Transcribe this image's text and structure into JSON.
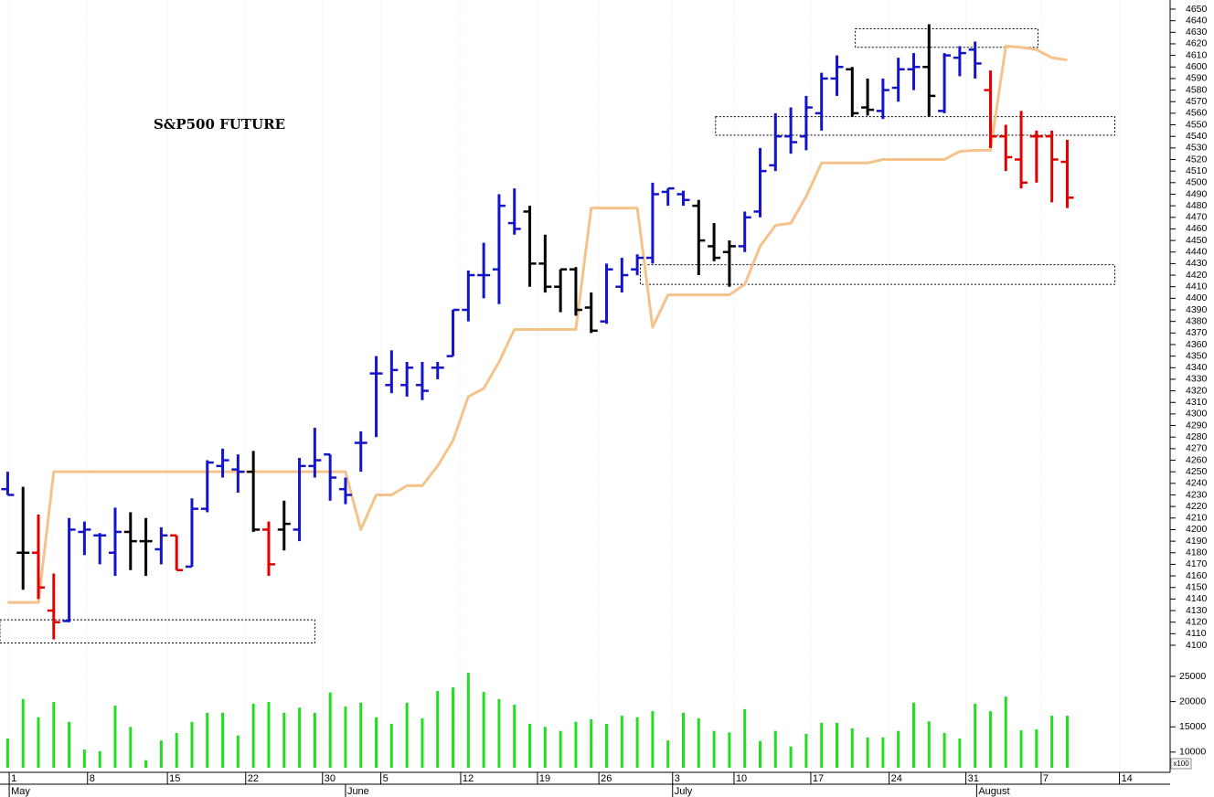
{
  "chart_data": {
    "type": "ohlc",
    "title": "S&P500 FUTURE",
    "x": [
      0,
      1,
      2,
      3,
      4,
      5,
      6,
      7,
      8,
      9,
      10,
      11,
      12,
      13,
      14,
      15,
      16,
      17,
      18,
      19,
      20,
      21,
      22,
      23,
      24,
      25,
      26,
      27,
      28,
      29,
      30,
      31,
      32,
      33,
      34,
      35,
      36,
      37,
      38,
      39,
      40,
      41,
      42,
      43,
      44,
      45,
      46,
      47,
      48,
      49,
      50,
      51,
      52,
      53,
      54,
      55,
      56,
      57,
      58,
      59,
      60,
      61,
      62,
      63,
      64,
      65,
      66,
      67,
      68,
      69
    ],
    "open": [
      4235,
      4180,
      4180,
      4130,
      4121,
      4198,
      4195,
      4180,
      4198,
      4190,
      4183,
      4195,
      4168,
      4218,
      4255,
      4252,
      4250,
      4200,
      4200,
      4200,
      4255,
      4265,
      4235,
      4275,
      4335,
      4325,
      4325,
      4325,
      4340,
      4350,
      4390,
      4420,
      4425,
      4465,
      4475,
      4430,
      4410,
      4425,
      4392,
      4380,
      4410,
      4425,
      4435,
      4492,
      4490,
      4480,
      4445,
      4440,
      4445,
      4475,
      4515,
      4540,
      4540,
      4560,
      4590,
      4598,
      4565,
      4562,
      4582,
      4598,
      4600,
      4562,
      4608,
      4615,
      4580,
      4540,
      4520,
      4540,
      4540,
      4518
    ],
    "high": [
      4250,
      4237,
      4213,
      4162,
      4210,
      4207,
      4197,
      4219,
      4215,
      4210,
      4202,
      4195,
      4227,
      4260,
      4270,
      4265,
      4268,
      4207,
      4225,
      4262,
      4288,
      4265,
      4245,
      4285,
      4350,
      4355,
      4345,
      4345,
      4345,
      4390,
      4424,
      4448,
      4490,
      4495,
      4480,
      4455,
      4425,
      4427,
      4405,
      4430,
      4435,
      4438,
      4500,
      4495,
      4493,
      4485,
      4465,
      4450,
      4475,
      4530,
      4560,
      4565,
      4575,
      4595,
      4610,
      4600,
      4590,
      4590,
      4608,
      4612,
      4637,
      4612,
      4618,
      4622,
      4597,
      4550,
      4562,
      4545,
      4545,
      4537
    ],
    "low": [
      4230,
      4148,
      4140,
      4105,
      4120,
      4178,
      4170,
      4160,
      4165,
      4160,
      4170,
      4165,
      4168,
      4215,
      4245,
      4232,
      4198,
      4160,
      4182,
      4190,
      4245,
      4225,
      4222,
      4250,
      4280,
      4318,
      4315,
      4312,
      4330,
      4350,
      4380,
      4400,
      4395,
      4455,
      4410,
      4405,
      4388,
      4385,
      4370,
      4378,
      4405,
      4420,
      4430,
      4480,
      4480,
      4420,
      4432,
      4410,
      4440,
      4470,
      4510,
      4525,
      4528,
      4545,
      4575,
      4557,
      4558,
      4555,
      4570,
      4580,
      4557,
      4560,
      4592,
      4590,
      4530,
      4510,
      4495,
      4500,
      4483,
      4478
    ],
    "close": [
      4230,
      4180,
      4150,
      4120,
      4200,
      4200,
      4195,
      4198,
      4190,
      4190,
      4195,
      4165,
      4218,
      4258,
      4260,
      4250,
      4200,
      4170,
      4205,
      4255,
      4260,
      4245,
      4230,
      4275,
      4335,
      4338,
      4340,
      4320,
      4340,
      4390,
      4420,
      4420,
      4480,
      4460,
      4430,
      4410,
      4425,
      4390,
      4372,
      4425,
      4420,
      4435,
      4490,
      4495,
      4485,
      4450,
      4435,
      4445,
      4470,
      4510,
      4540,
      4535,
      4565,
      4590,
      4600,
      4560,
      4563,
      4580,
      4598,
      4600,
      4575,
      4610,
      4612,
      4603,
      4540,
      4522,
      4500,
      4540,
      4520,
      4487
    ],
    "bar_colors": [
      "#1414c8",
      "#000000",
      "#e00000",
      "#e00000",
      "#1414c8",
      "#1414c8",
      "#1414c8",
      "#1414c8",
      "#000000",
      "#000000",
      "#1414c8",
      "#e00000",
      "#1414c8",
      "#1414c8",
      "#1414c8",
      "#1414c8",
      "#000000",
      "#e00000",
      "#000000",
      "#1414c8",
      "#1414c8",
      "#1414c8",
      "#1414c8",
      "#1414c8",
      "#1414c8",
      "#1414c8",
      "#1414c8",
      "#1414c8",
      "#1414c8",
      "#1414c8",
      "#1414c8",
      "#1414c8",
      "#1414c8",
      "#1414c8",
      "#000000",
      "#000000",
      "#000000",
      "#000000",
      "#000000",
      "#1414c8",
      "#1414c8",
      "#1414c8",
      "#1414c8",
      "#1414c8",
      "#1414c8",
      "#000000",
      "#000000",
      "#000000",
      "#1414c8",
      "#1414c8",
      "#1414c8",
      "#1414c8",
      "#1414c8",
      "#1414c8",
      "#1414c8",
      "#000000",
      "#000000",
      "#1414c8",
      "#1414c8",
      "#1414c8",
      "#000000",
      "#1414c8",
      "#1414c8",
      "#1414c8",
      "#e00000",
      "#e00000",
      "#e00000",
      "#e00000",
      "#e00000",
      "#e00000"
    ],
    "line_values": [
      4137,
      4137,
      4137,
      4250,
      4250,
      4250,
      4250,
      4250,
      4250,
      4250,
      4250,
      4250,
      4250,
      4250,
      4250,
      4250,
      4250,
      4250,
      4250,
      4250,
      4250,
      4250,
      4250,
      4200,
      4230,
      4230,
      4238,
      4238,
      4255,
      4277,
      4315,
      4322,
      4345,
      4373,
      4373,
      4373,
      4373,
      4373,
      4478,
      4478,
      4478,
      4478,
      4375,
      4403,
      4403,
      4403,
      4403,
      4403,
      4412,
      4445,
      4463,
      4465,
      4488,
      4517,
      4517,
      4517,
      4517,
      4520,
      4520,
      4520,
      4520,
      4520,
      4527,
      4528,
      4528,
      4618,
      4617,
      4615,
      4608,
      4606
    ],
    "line_color": "#f5c38a",
    "zones": [
      {
        "x": [
          -0.5,
          20
        ],
        "y": [
          4102,
          4122
        ]
      },
      {
        "x": [
          55.2,
          67.1
        ],
        "y": [
          4617,
          4633
        ]
      },
      {
        "x": [
          46.1,
          72.1
        ],
        "y": [
          4541,
          4557
        ]
      },
      {
        "x": [
          41.2,
          72.1
        ],
        "y": [
          4412,
          4429
        ]
      }
    ],
    "xlim": [
      -0.5,
      75.7
    ],
    "ylim": [
      4100,
      4650
    ],
    "yticks": [
      4100,
      4110,
      4120,
      4130,
      4140,
      4150,
      4160,
      4170,
      4180,
      4190,
      4200,
      4210,
      4220,
      4230,
      4240,
      4250,
      4260,
      4270,
      4280,
      4290,
      4300,
      4310,
      4320,
      4330,
      4340,
      4350,
      4360,
      4370,
      4380,
      4390,
      4400,
      4410,
      4420,
      4430,
      4440,
      4450,
      4460,
      4470,
      4480,
      4490,
      4500,
      4510,
      4520,
      4530,
      4540,
      4550,
      4560,
      4570,
      4580,
      4590,
      4600,
      4610,
      4620,
      4630,
      4640,
      4650
    ],
    "xticks": [
      {
        "value": 0.1,
        "label": "1"
      },
      {
        "value": 5.2,
        "label": "8"
      },
      {
        "value": 10.4,
        "label": "15"
      },
      {
        "value": 15.5,
        "label": "22"
      },
      {
        "value": 20.5,
        "label": "30"
      },
      {
        "value": 24.3,
        "label": "5"
      },
      {
        "value": 29.5,
        "label": "12"
      },
      {
        "value": 34.5,
        "label": "19"
      },
      {
        "value": 38.5,
        "label": "26"
      },
      {
        "value": 43.3,
        "label": "3"
      },
      {
        "value": 47.3,
        "label": "10"
      },
      {
        "value": 52.3,
        "label": "17"
      },
      {
        "value": 57.4,
        "label": "24"
      },
      {
        "value": 62.4,
        "label": "31"
      },
      {
        "value": 67.3,
        "label": "7"
      },
      {
        "value": 72.4,
        "label": "14"
      }
    ],
    "months": [
      {
        "value": 0.1,
        "label": "May"
      },
      {
        "value": 22.0,
        "label": "June"
      },
      {
        "value": 43.3,
        "label": "July"
      },
      {
        "value": 63.1,
        "label": "August"
      }
    ],
    "volume": {
      "values": [
        12700,
        20500,
        16900,
        19900,
        16000,
        10500,
        10200,
        19200,
        15000,
        8400,
        12300,
        13800,
        16000,
        17800,
        17800,
        13300,
        19600,
        19900,
        17800,
        18800,
        17800,
        21800,
        19000,
        19800,
        16900,
        15600,
        19800,
        16700,
        22100,
        22800,
        25700,
        21900,
        20500,
        19400,
        15600,
        15000,
        14200,
        16000,
        16500,
        15600,
        17200,
        16900,
        18100,
        12300,
        17800,
        16700,
        14200,
        13900,
        18500,
        12200,
        14200,
        11100,
        13600,
        15800,
        15800,
        14700,
        12900,
        12900,
        14200,
        19800,
        16100,
        13800,
        12700,
        19600,
        18100,
        21000,
        14300,
        14500,
        17200,
        17200
      ],
      "color": "#22dd22",
      "ylim": [
        6900,
        25000
      ],
      "yticks": [
        10000,
        15000,
        20000,
        25000
      ],
      "unit_note": "x100"
    }
  }
}
